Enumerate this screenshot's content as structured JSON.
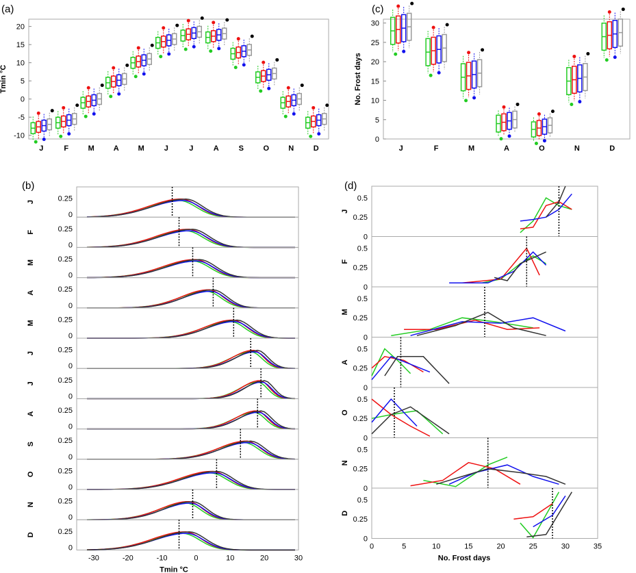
{
  "colors": {
    "model1": "#22cc22",
    "model2": "#ee1111",
    "model3": "#1111ee",
    "model4": "#333333",
    "box4": "#999999"
  },
  "chart_data": [
    {
      "panel": "(a)",
      "type": "box",
      "ylabel": "Tmin °C",
      "categories": [
        "J",
        "F",
        "M",
        "A",
        "M",
        "J",
        "J",
        "A",
        "S",
        "O",
        "N",
        "D"
      ],
      "ylim": [
        -11,
        22
      ],
      "yticks": [
        -10,
        -5,
        0,
        5,
        10,
        15,
        20
      ],
      "medians": [
        -7.5,
        -6,
        -0.5,
        5,
        10.5,
        16,
        18,
        17.5,
        13,
        6.5,
        -0.5,
        -6
      ]
    },
    {
      "panel": "(c)",
      "type": "box",
      "ylabel": "No. Frost days",
      "categories": [
        "J",
        "F",
        "M",
        "A",
        "O",
        "N",
        "D"
      ],
      "ylim": [
        0,
        31
      ],
      "yticks": [
        0,
        5,
        10,
        15,
        20,
        25,
        30
      ],
      "medians": [
        28.5,
        23,
        16.5,
        4.5,
        3,
        15.5,
        27
      ]
    },
    {
      "panel": "(b)",
      "type": "line",
      "xlabel": "Tmin °C",
      "xlim": [
        -35,
        30
      ],
      "xticks": [
        -30,
        -20,
        -10,
        0,
        10,
        20,
        30
      ],
      "ylim": [
        0,
        0.4
      ],
      "ytick_labels": [
        "0",
        "0.25"
      ],
      "months": [
        "J",
        "F",
        "M",
        "A",
        "M",
        "J",
        "J",
        "A",
        "S",
        "O",
        "N",
        "D"
      ],
      "peaks": [
        -4,
        -2,
        0,
        4,
        11,
        17,
        19,
        18,
        15,
        5,
        -2,
        -3
      ],
      "widths": [
        7,
        7,
        7,
        6,
        6,
        4.5,
        4,
        4.5,
        6,
        7,
        6,
        7
      ],
      "means": [
        -7,
        -5,
        -1,
        5,
        11,
        16,
        19,
        18,
        13,
        6,
        -1,
        -5
      ]
    },
    {
      "panel": "(d)",
      "type": "line",
      "xlabel": "No. Frost days",
      "xlim": [
        0,
        35
      ],
      "xticks": [
        0,
        5,
        10,
        15,
        20,
        25,
        30,
        35
      ],
      "ylim": [
        0,
        0.65
      ],
      "ytick_labels": [
        "0",
        "0.25",
        "0.5"
      ],
      "months": [
        "J",
        "F",
        "M",
        "A",
        "O",
        "N",
        "D"
      ],
      "means": [
        29,
        24,
        17.5,
        4.5,
        3.5,
        18,
        28
      ],
      "series": [
        [
          [
            [
              23,
              0.05
            ],
            [
              25,
              0.2
            ],
            [
              27,
              0.5
            ],
            [
              29,
              0.4
            ],
            [
              31,
              0.35
            ]
          ],
          [
            [
              23,
              0.1
            ],
            [
              25,
              0.12
            ],
            [
              27,
              0.4
            ],
            [
              29,
              0.45
            ],
            [
              31,
              0.35
            ]
          ],
          [
            [
              23,
              0.2
            ],
            [
              25,
              0.22
            ],
            [
              27,
              0.25
            ],
            [
              29,
              0.35
            ],
            [
              31,
              0.55
            ]
          ],
          [
            [
              27,
              0.25
            ],
            [
              29,
              0.45
            ],
            [
              30,
              0.65
            ]
          ]
        ],
        [
          [
            [
              17,
              0.05
            ],
            [
              20,
              0.1
            ],
            [
              23,
              0.3
            ],
            [
              25,
              0.4
            ],
            [
              27,
              0.3
            ]
          ],
          [
            [
              14,
              0.05
            ],
            [
              20,
              0.1
            ],
            [
              24,
              0.5
            ],
            [
              26,
              0.15
            ]
          ],
          [
            [
              12,
              0.05
            ],
            [
              18,
              0.05
            ],
            [
              22,
              0.2
            ],
            [
              25,
              0.45
            ],
            [
              27,
              0.28
            ]
          ],
          [
            [
              19,
              0.12
            ],
            [
              21,
              0.08
            ],
            [
              23,
              0.3
            ],
            [
              27,
              0.45
            ]
          ]
        ],
        [
          [
            [
              3,
              0.02
            ],
            [
              9,
              0.1
            ],
            [
              14,
              0.25
            ],
            [
              19,
              0.2
            ],
            [
              25,
              0.12
            ]
          ],
          [
            [
              5,
              0.1
            ],
            [
              10,
              0.1
            ],
            [
              16,
              0.22
            ],
            [
              21,
              0.1
            ],
            [
              26,
              0.12
            ]
          ],
          [
            [
              6,
              0.02
            ],
            [
              14,
              0.2
            ],
            [
              20,
              0.18
            ],
            [
              25,
              0.25
            ],
            [
              30,
              0.08
            ]
          ],
          [
            [
              7,
              0.02
            ],
            [
              13,
              0.15
            ],
            [
              18,
              0.32
            ],
            [
              22,
              0.12
            ],
            [
              27,
              0.02
            ]
          ]
        ],
        [
          [
            [
              0,
              0.15
            ],
            [
              2,
              0.5
            ],
            [
              4,
              0.35
            ],
            [
              6,
              0.18
            ]
          ],
          [
            [
              0,
              0.25
            ],
            [
              2,
              0.4
            ],
            [
              5,
              0.35
            ],
            [
              8,
              0.2
            ]
          ],
          [
            [
              0,
              0.1
            ],
            [
              3,
              0.4
            ],
            [
              6,
              0.3
            ],
            [
              9,
              0.2
            ]
          ],
          [
            [
              2,
              0.15
            ],
            [
              4,
              0.4
            ],
            [
              8,
              0.4
            ],
            [
              12,
              0.05
            ]
          ]
        ],
        [
          [
            [
              0,
              0.25
            ],
            [
              3,
              0.3
            ],
            [
              7,
              0.35
            ],
            [
              11,
              0.05
            ]
          ],
          [
            [
              0,
              0.5
            ],
            [
              3,
              0.3
            ],
            [
              6,
              0.15
            ],
            [
              9,
              0.02
            ]
          ],
          [
            [
              0,
              0.2
            ],
            [
              3,
              0.5
            ],
            [
              7,
              0.15
            ]
          ],
          [
            [
              0,
              0.05
            ],
            [
              3,
              0.3
            ],
            [
              6,
              0.4
            ],
            [
              12,
              0.05
            ]
          ]
        ],
        [
          [
            [
              8,
              0.1
            ],
            [
              13,
              0.02
            ],
            [
              18,
              0.3
            ],
            [
              21,
              0.4
            ]
          ],
          [
            [
              6,
              0.03
            ],
            [
              11,
              0.1
            ],
            [
              15,
              0.33
            ],
            [
              19,
              0.25
            ],
            [
              23,
              0.05
            ]
          ],
          [
            [
              12,
              0.05
            ],
            [
              16,
              0.2
            ],
            [
              21,
              0.3
            ],
            [
              25,
              0.15
            ],
            [
              29,
              0.05
            ]
          ],
          [
            [
              10,
              0.05
            ],
            [
              14,
              0.15
            ],
            [
              18,
              0.25
            ],
            [
              23,
              0.2
            ],
            [
              27,
              0.15
            ],
            [
              30,
              0.05
            ]
          ]
        ],
        [
          [
            [
              23,
              0.2
            ],
            [
              25,
              0.01
            ],
            [
              29,
              0.6
            ]
          ],
          [
            [
              22,
              0.25
            ],
            [
              25,
              0.28
            ],
            [
              28,
              0.45
            ]
          ],
          [
            [
              25,
              0.15
            ],
            [
              28,
              0.3
            ],
            [
              30,
              0.55
            ]
          ],
          [
            [
              24,
              0.02
            ],
            [
              27,
              0.05
            ],
            [
              31,
              0.6
            ]
          ]
        ]
      ]
    }
  ],
  "panel_labels": {
    "a": "(a)",
    "b": "(b)",
    "c": "(c)",
    "d": "(d)"
  }
}
